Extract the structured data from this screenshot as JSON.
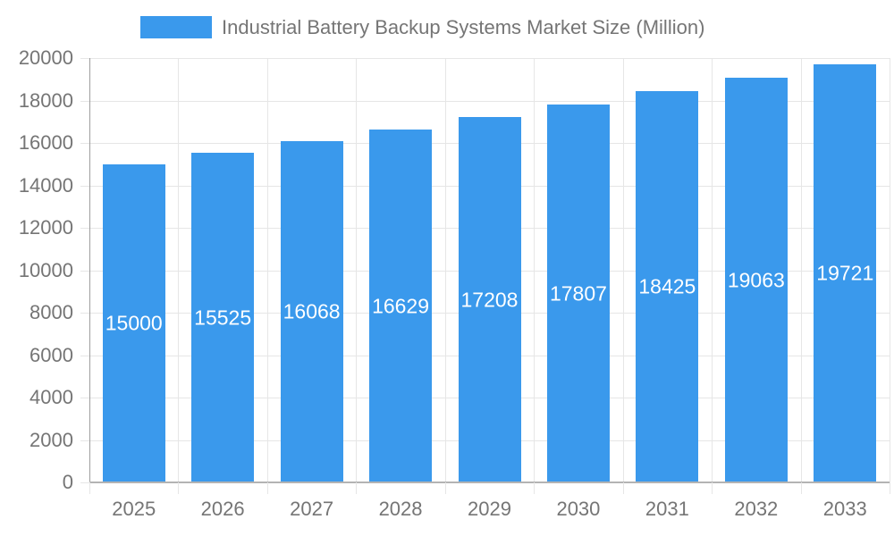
{
  "chart_data": {
    "type": "bar",
    "title": "Industrial Battery Backup Systems Market Size (Million)",
    "categories": [
      "2025",
      "2026",
      "2027",
      "2028",
      "2029",
      "2030",
      "2031",
      "2032",
      "2033"
    ],
    "values": [
      15000,
      15525,
      16068,
      16629,
      17208,
      17807,
      18425,
      19063,
      19721
    ],
    "bar_labels": [
      "15000",
      "15525",
      "16068",
      "16629",
      "17208",
      "17807",
      "18425",
      "19063",
      "19721"
    ],
    "xlabel": "",
    "ylabel": "",
    "ylim": [
      0,
      20000
    ],
    "ytick_step": 2000,
    "ytick_labels": [
      "0",
      "2000",
      "4000",
      "6000",
      "8000",
      "10000",
      "12000",
      "14000",
      "16000",
      "18000",
      "20000"
    ],
    "grid": true,
    "legend_position": "top"
  },
  "colors": {
    "bar": "#3a99ec",
    "bar_value_label": "#ffffff",
    "axis_text": "#757575",
    "legend_text": "#757575",
    "gridline": "#e6e6e6",
    "axis_line": "#9e9e9e",
    "baseline": "#b3b3b3",
    "background": "#ffffff"
  }
}
